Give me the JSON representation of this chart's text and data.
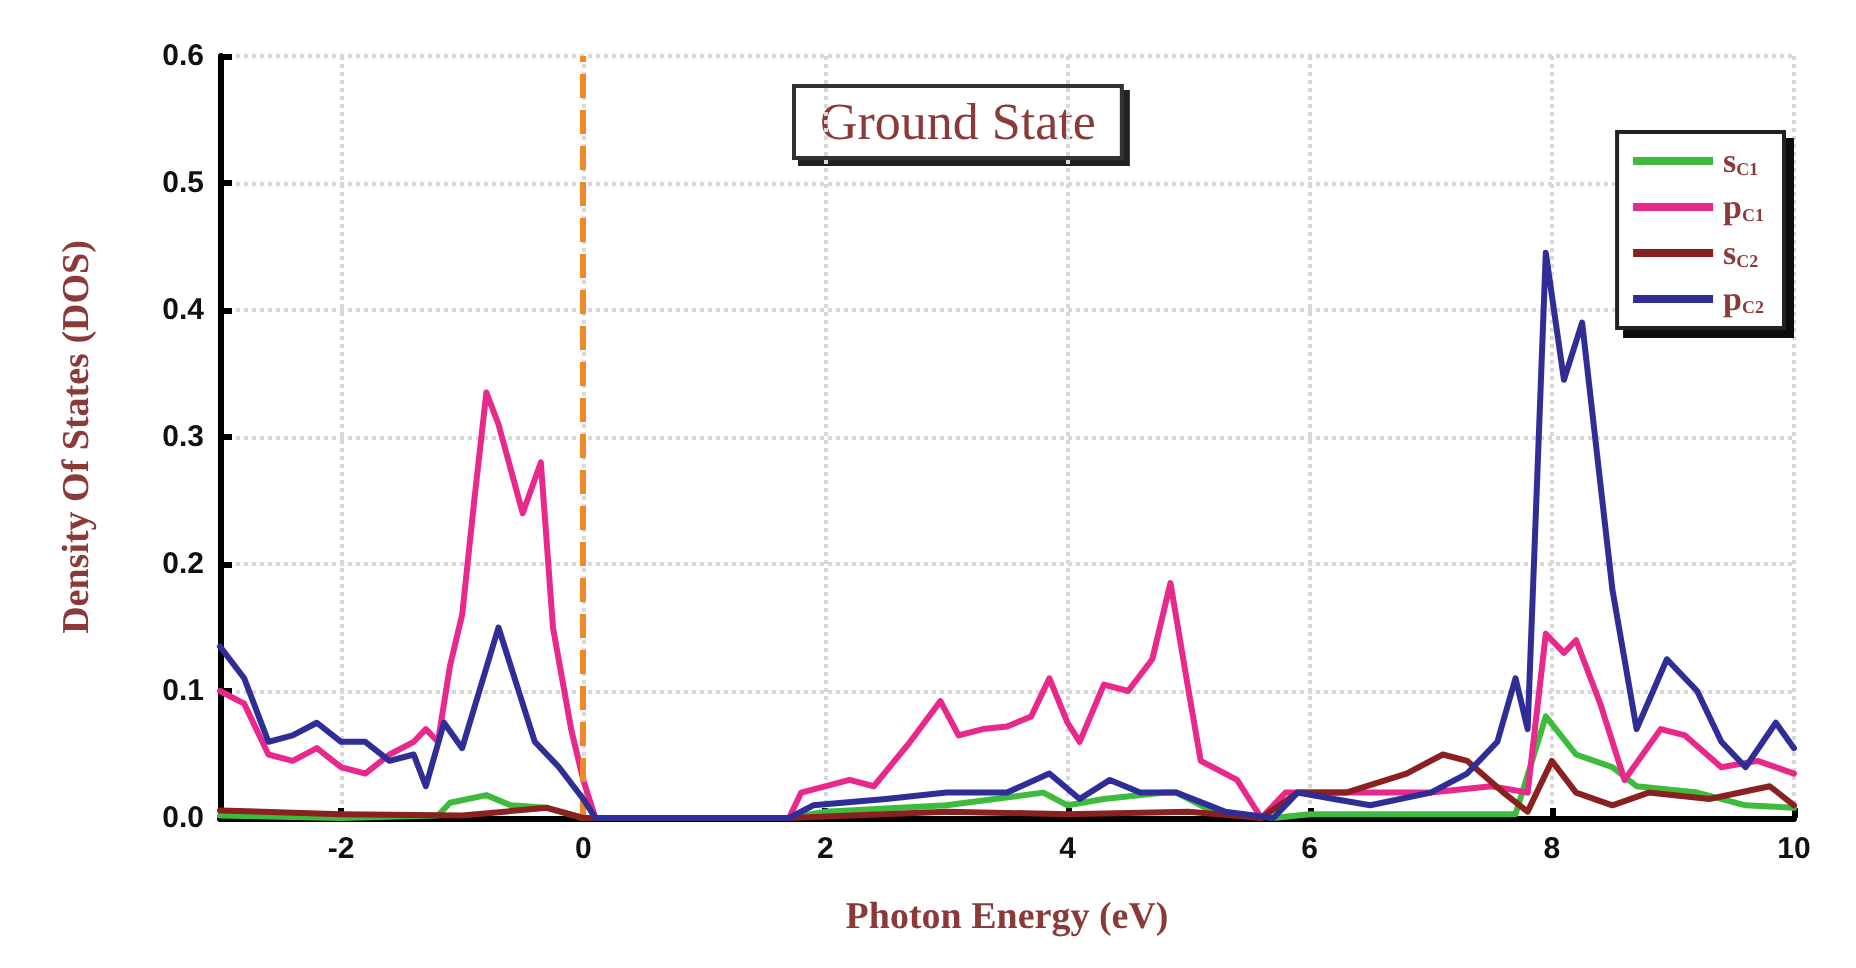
{
  "chart_data": {
    "type": "line",
    "xlabel": "Photon Energy (eV)",
    "ylabel": "Density Of States (DOS)",
    "annotations": [
      "Ground State"
    ],
    "xlim": [
      -3,
      10
    ],
    "xticks": [
      -2,
      0,
      2,
      4,
      6,
      8,
      10
    ],
    "ylim": [
      0,
      0.6
    ],
    "yticks": [
      {
        "value": 0,
        "label": "0.0"
      },
      0.1,
      0.2,
      0.3,
      0.4,
      0.5,
      0.6
    ],
    "grid": true,
    "legend": "top right",
    "marker": "none",
    "line_style": "solid",
    "ref_lines": [
      {
        "axis": "x",
        "value": 0,
        "label": null,
        "color": "#f0882a",
        "line_style": "dashed"
      }
    ],
    "series": [
      {
        "name": "s$_{C1}$",
        "color": "#3dbb3d",
        "x": [
          -3,
          -2,
          -1.2,
          -1.1,
          -0.8,
          -0.6,
          -0.3,
          0,
          1.7,
          2.0,
          3.0,
          3.8,
          4.0,
          4.3,
          4.8,
          4.9,
          5.2,
          5.7,
          6.0,
          7.0,
          7.7,
          7.95,
          8.2,
          8.5,
          8.7,
          9.2,
          9.6,
          10
        ],
        "values": [
          0.002,
          0,
          0.002,
          0.012,
          0.018,
          0.01,
          0.008,
          0,
          0,
          0.005,
          0.01,
          0.02,
          0.01,
          0.015,
          0.02,
          0.02,
          0.005,
          0,
          0.003,
          0.003,
          0.003,
          0.08,
          0.05,
          0.04,
          0.025,
          0.02,
          0.01,
          0.008
        ]
      },
      {
        "name": "p$_{C1}$",
        "color": "#e8288a",
        "x": [
          -3,
          -2.8,
          -2.6,
          -2.4,
          -2.2,
          -2.0,
          -1.8,
          -1.6,
          -1.4,
          -1.3,
          -1.2,
          -1.1,
          -1.0,
          -0.9,
          -0.8,
          -0.7,
          -0.5,
          -0.35,
          -0.25,
          -0.1,
          0,
          0.1,
          1.7,
          1.8,
          2.2,
          2.4,
          2.7,
          2.95,
          3.1,
          3.3,
          3.5,
          3.7,
          3.85,
          4.0,
          4.1,
          4.3,
          4.5,
          4.7,
          4.85,
          5.0,
          5.1,
          5.4,
          5.6,
          5.8,
          6.0,
          7.0,
          7.5,
          7.8,
          7.95,
          8.1,
          8.2,
          8.4,
          8.6,
          8.9,
          9.1,
          9.4,
          9.7,
          10
        ],
        "values": [
          0.1,
          0.09,
          0.05,
          0.045,
          0.055,
          0.04,
          0.035,
          0.05,
          0.06,
          0.07,
          0.06,
          0.12,
          0.16,
          0.25,
          0.335,
          0.31,
          0.24,
          0.28,
          0.15,
          0.07,
          0.03,
          0,
          0,
          0.02,
          0.03,
          0.025,
          0.06,
          0.092,
          0.065,
          0.07,
          0.072,
          0.08,
          0.11,
          0.075,
          0.06,
          0.105,
          0.1,
          0.125,
          0.185,
          0.1,
          0.045,
          0.03,
          0,
          0.02,
          0.02,
          0.02,
          0.025,
          0.02,
          0.145,
          0.13,
          0.14,
          0.09,
          0.03,
          0.07,
          0.065,
          0.04,
          0.045,
          0.035
        ]
      },
      {
        "name": "s$_{C2}$",
        "color": "#8b2020",
        "x": [
          -3,
          -2,
          -1,
          -0.3,
          0,
          1.7,
          3.0,
          4.0,
          5.0,
          5.6,
          5.9,
          6.3,
          6.8,
          7.1,
          7.3,
          7.6,
          7.8,
          8.0,
          8.2,
          8.5,
          8.8,
          9.3,
          9.8,
          10
        ],
        "values": [
          0.006,
          0.003,
          0.002,
          0.008,
          0,
          0,
          0.005,
          0.003,
          0.005,
          0,
          0.02,
          0.02,
          0.035,
          0.05,
          0.045,
          0.02,
          0.005,
          0.045,
          0.02,
          0.01,
          0.02,
          0.015,
          0.025,
          0.01
        ]
      },
      {
        "name": "p$_{C2}$",
        "color": "#2e2e96",
        "x": [
          -3,
          -2.8,
          -2.6,
          -2.4,
          -2.2,
          -2.0,
          -1.8,
          -1.6,
          -1.4,
          -1.3,
          -1.15,
          -1.0,
          -0.7,
          -0.4,
          -0.2,
          0,
          0.1,
          1.7,
          1.9,
          2.5,
          3.0,
          3.5,
          3.85,
          4.1,
          4.35,
          4.6,
          4.9,
          5.3,
          5.7,
          5.9,
          6.2,
          6.5,
          7.0,
          7.3,
          7.55,
          7.7,
          7.8,
          7.95,
          8.1,
          8.25,
          8.5,
          8.7,
          8.95,
          9.2,
          9.4,
          9.6,
          9.85,
          10
        ],
        "values": [
          0.135,
          0.11,
          0.06,
          0.065,
          0.075,
          0.06,
          0.06,
          0.045,
          0.05,
          0.025,
          0.075,
          0.055,
          0.15,
          0.06,
          0.04,
          0.015,
          0,
          0,
          0.01,
          0.015,
          0.02,
          0.02,
          0.035,
          0.015,
          0.03,
          0.02,
          0.02,
          0.005,
          0,
          0.02,
          0.015,
          0.01,
          0.02,
          0.035,
          0.06,
          0.11,
          0.07,
          0.445,
          0.345,
          0.39,
          0.18,
          0.07,
          0.125,
          0.1,
          0.06,
          0.04,
          0.075,
          0.055
        ]
      }
    ]
  }
}
